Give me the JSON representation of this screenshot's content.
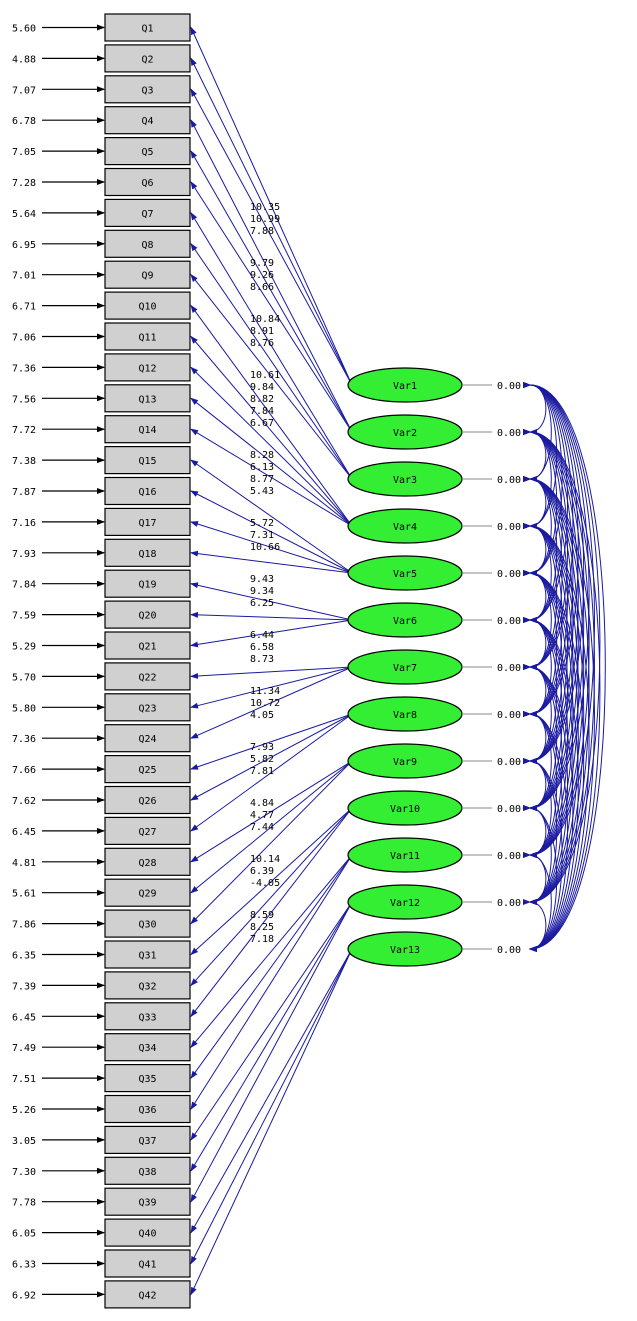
{
  "colors": {
    "box_fill": "#d0d0d0",
    "box_stroke": "#000000",
    "ellipse_fill": "#33ee33",
    "ellipse_stroke": "#000000",
    "arrow": "#1a1aa0",
    "text": "#000000"
  },
  "observed": [
    {
      "label": "Q1",
      "error": "5.60"
    },
    {
      "label": "Q2",
      "error": "4.88"
    },
    {
      "label": "Q3",
      "error": "7.07"
    },
    {
      "label": "Q4",
      "error": "6.78"
    },
    {
      "label": "Q5",
      "error": "7.05"
    },
    {
      "label": "Q6",
      "error": "7.28"
    },
    {
      "label": "Q7",
      "error": "5.64"
    },
    {
      "label": "Q8",
      "error": "6.95"
    },
    {
      "label": "Q9",
      "error": "7.01"
    },
    {
      "label": "Q10",
      "error": "6.71"
    },
    {
      "label": "Q11",
      "error": "7.06"
    },
    {
      "label": "Q12",
      "error": "7.36"
    },
    {
      "label": "Q13",
      "error": "7.56"
    },
    {
      "label": "Q14",
      "error": "7.72"
    },
    {
      "label": "Q15",
      "error": "7.38"
    },
    {
      "label": "Q16",
      "error": "7.87"
    },
    {
      "label": "Q17",
      "error": "7.16"
    },
    {
      "label": "Q18",
      "error": "7.93"
    },
    {
      "label": "Q19",
      "error": "7.84"
    },
    {
      "label": "Q20",
      "error": "7.59"
    },
    {
      "label": "Q21",
      "error": "5.29"
    },
    {
      "label": "Q22",
      "error": "5.70"
    },
    {
      "label": "Q23",
      "error": "5.80"
    },
    {
      "label": "Q24",
      "error": "7.36"
    },
    {
      "label": "Q25",
      "error": "7.66"
    },
    {
      "label": "Q26",
      "error": "7.62"
    },
    {
      "label": "Q27",
      "error": "6.45"
    },
    {
      "label": "Q28",
      "error": "4.81"
    },
    {
      "label": "Q29",
      "error": "5.61"
    },
    {
      "label": "Q30",
      "error": "7.86"
    },
    {
      "label": "Q31",
      "error": "6.35"
    },
    {
      "label": "Q32",
      "error": "7.39"
    },
    {
      "label": "Q33",
      "error": "6.45"
    },
    {
      "label": "Q34",
      "error": "7.49"
    },
    {
      "label": "Q35",
      "error": "7.51"
    },
    {
      "label": "Q36",
      "error": "5.26"
    },
    {
      "label": "Q37",
      "error": "3.05"
    },
    {
      "label": "Q38",
      "error": "7.30"
    },
    {
      "label": "Q39",
      "error": "7.78"
    },
    {
      "label": "Q40",
      "error": "6.05"
    },
    {
      "label": "Q41",
      "error": "6.33"
    },
    {
      "label": "Q42",
      "error": "6.92"
    }
  ],
  "latent": [
    {
      "label": "Var1",
      "variance": "0.00"
    },
    {
      "label": "Var2",
      "variance": "0.00"
    },
    {
      "label": "Var3",
      "variance": "0.00"
    },
    {
      "label": "Var4",
      "variance": "0.00"
    },
    {
      "label": "Var5",
      "variance": "0.00"
    },
    {
      "label": "Var6",
      "variance": "0.00"
    },
    {
      "label": "Var7",
      "variance": "0.00"
    },
    {
      "label": "Var8",
      "variance": "0.00"
    },
    {
      "label": "Var9",
      "variance": "0.00"
    },
    {
      "label": "Var10",
      "variance": "0.00"
    },
    {
      "label": "Var11",
      "variance": "0.00"
    },
    {
      "label": "Var12",
      "variance": "0.00"
    },
    {
      "label": "Var13",
      "variance": "0.00"
    }
  ],
  "loadings": [
    {
      "from": 0,
      "to": [
        0,
        1,
        2
      ],
      "values": [
        "10.35",
        "10.99",
        "7.88"
      ]
    },
    {
      "from": 1,
      "to": [
        3,
        4,
        5
      ],
      "values": [
        "9.79",
        "9.26",
        "8.66"
      ]
    },
    {
      "from": 2,
      "to": [
        6,
        7,
        8
      ],
      "values": [
        "10.84",
        "8.91",
        "8.76"
      ]
    },
    {
      "from": 3,
      "to": [
        9,
        10,
        11,
        12,
        13
      ],
      "values": [
        "10.61",
        "9.84",
        "8.82",
        "7.84",
        "6.67"
      ]
    },
    {
      "from": 4,
      "to": [
        14,
        15,
        16,
        17
      ],
      "values": [
        "8.28",
        "6.13",
        "8.77",
        "5.43"
      ]
    },
    {
      "from": 5,
      "to": [
        18,
        19,
        20
      ],
      "values": [
        "5.72",
        "7.31",
        "10.66"
      ]
    },
    {
      "from": 6,
      "to": [
        21,
        22,
        23
      ],
      "values": [
        "9.43",
        "9.34",
        "6.25"
      ]
    },
    {
      "from": 7,
      "to": [
        24,
        25,
        26
      ],
      "values": [
        "6.44",
        "6.58",
        "8.73"
      ]
    },
    {
      "from": 8,
      "to": [
        27,
        28,
        29
      ],
      "values": [
        "11.34",
        "10.72",
        "4.05"
      ]
    },
    {
      "from": 9,
      "to": [
        30,
        31,
        32
      ],
      "values": [
        "7.93",
        "5.82",
        "7.81"
      ]
    },
    {
      "from": 10,
      "to": [
        33,
        34,
        35
      ],
      "values": [
        "4.84",
        "4.77",
        "7.44"
      ]
    },
    {
      "from": 11,
      "to": [
        36,
        37,
        38
      ],
      "values": [
        "10.14",
        "6.39",
        "-4.05"
      ]
    },
    {
      "from": 12,
      "to": [
        39,
        40,
        41
      ],
      "values": [
        "8.59",
        "8.25",
        "7.18"
      ]
    }
  ]
}
